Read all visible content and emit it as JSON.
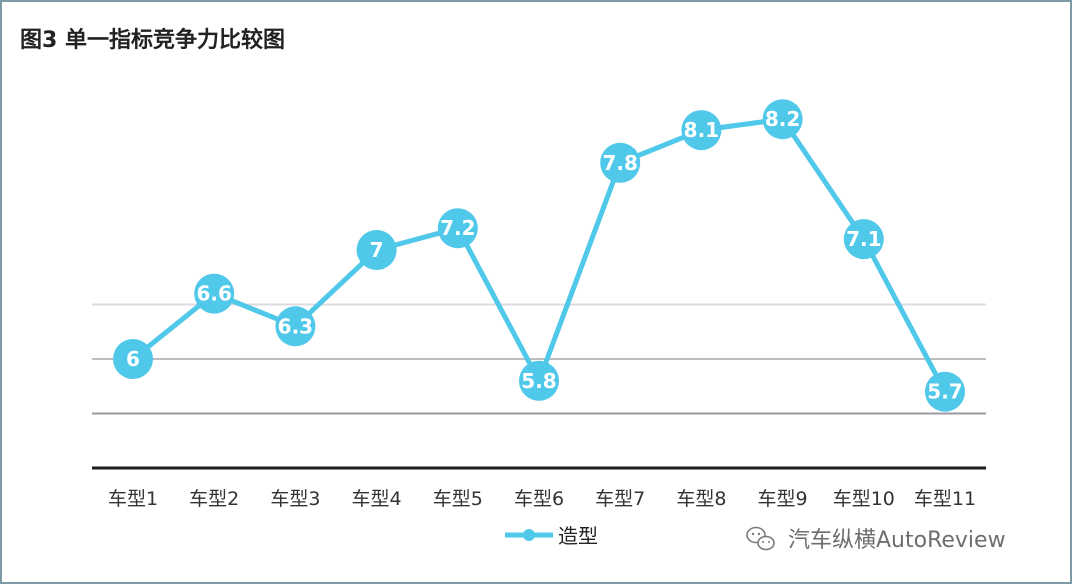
{
  "chart_data": {
    "type": "line",
    "title": "图3 单一指标竞争力比较图",
    "categories": [
      "车型1",
      "车型2",
      "车型3",
      "车型4",
      "车型5",
      "车型6",
      "车型7",
      "车型8",
      "车型9",
      "车型10",
      "车型11"
    ],
    "series": [
      {
        "name": "造型",
        "values": [
          6,
          6.6,
          6.3,
          7,
          7.2,
          5.8,
          7.8,
          8.1,
          8.2,
          7.1,
          5.7
        ],
        "color": "#4fc8ea"
      }
    ],
    "ylim": [
      5,
      9
    ],
    "gridlines": [
      5.5,
      6,
      6.5
    ],
    "grid": true,
    "legend": "bottom-center",
    "xlabel": "",
    "ylabel": ""
  },
  "watermark": {
    "text": "汽车纵横AutoReview",
    "icon": "wechat-icon"
  },
  "colors": {
    "line": "#4fc8ea",
    "grid": "#c8c8cc",
    "axis": "#1e1e1e",
    "border": "#7f9ba8"
  }
}
